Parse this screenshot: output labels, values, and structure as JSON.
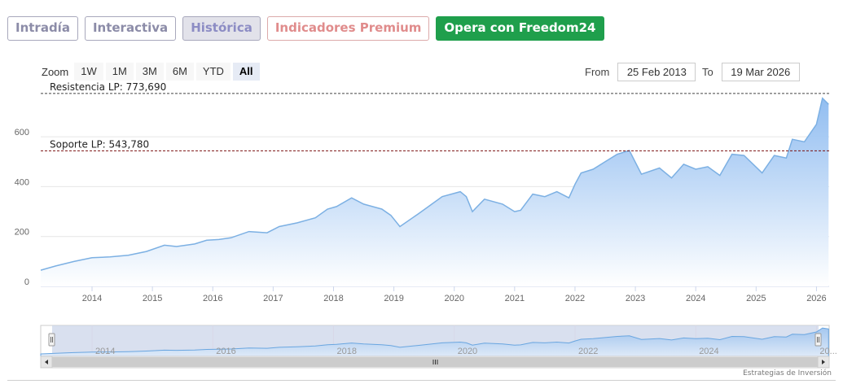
{
  "tabs": [
    {
      "label": "Intradía",
      "state": "default"
    },
    {
      "label": "Interactiva",
      "state": "default"
    },
    {
      "label": "Histórica",
      "state": "active"
    },
    {
      "label": "Indicadores Premium",
      "state": "premium"
    },
    {
      "label": "Opera con Freedom24",
      "state": "cta"
    }
  ],
  "range_selector": {
    "zoom_label": "Zoom",
    "buttons": [
      "1W",
      "1M",
      "3M",
      "6M",
      "YTD",
      "All"
    ],
    "selected": "All",
    "from_label": "From",
    "from_value": "25 Feb 2013",
    "to_label": "To",
    "to_value": "19 Mar 2026"
  },
  "navigator": {
    "labels": [
      "2014",
      "2016",
      "2018",
      "2020",
      "2022",
      "2024",
      "20..."
    ]
  },
  "credit": "Estrategias de Inversión",
  "colors": {
    "line": "#7cb0e3",
    "area_top": "#8cbaf0",
    "area_bottom": "#ffffff",
    "cta": "#1f9f4c",
    "resistance": "#444444",
    "support": "#7a1010"
  },
  "chart_data": {
    "type": "area",
    "x_unit": "year",
    "xlim": [
      2013.15,
      2026.21
    ],
    "ylim": [
      0,
      780
    ],
    "yticks": [
      0,
      200,
      400,
      600
    ],
    "xticks": [
      "2014",
      "2015",
      "2016",
      "2017",
      "2018",
      "2019",
      "2020",
      "2021",
      "2022",
      "2023",
      "2024",
      "2025",
      "2026"
    ],
    "grid": true,
    "series": [
      {
        "x": [
          2013.15,
          2013.4,
          2013.7,
          2014.0,
          2014.3,
          2014.6,
          2014.9,
          2015.2,
          2015.4,
          2015.7,
          2015.9,
          2016.1,
          2016.3,
          2016.6,
          2016.9,
          2017.1,
          2017.4,
          2017.7,
          2017.9,
          2018.05,
          2018.3,
          2018.5,
          2018.8,
          2018.95,
          2019.1,
          2019.4,
          2019.6,
          2019.8,
          2020.1,
          2020.2,
          2020.3,
          2020.5,
          2020.8,
          2021.0,
          2021.1,
          2021.3,
          2021.5,
          2021.7,
          2021.9,
          2022.0,
          2022.1,
          2022.3,
          2022.5,
          2022.7,
          2022.9,
          2023.1,
          2023.4,
          2023.6,
          2023.8,
          2024.0,
          2024.2,
          2024.4,
          2024.6,
          2024.8,
          2025.1,
          2025.3,
          2025.5,
          2025.6,
          2025.8,
          2026.0,
          2026.1,
          2026.2
        ],
        "y": [
          65,
          82,
          100,
          115,
          118,
          125,
          140,
          165,
          160,
          170,
          185,
          188,
          195,
          220,
          215,
          240,
          255,
          275,
          310,
          320,
          355,
          330,
          310,
          285,
          240,
          290,
          325,
          360,
          380,
          360,
          300,
          350,
          330,
          300,
          305,
          370,
          360,
          380,
          355,
          410,
          455,
          470,
          500,
          530,
          545,
          450,
          475,
          435,
          490,
          470,
          480,
          445,
          530,
          525,
          455,
          525,
          515,
          590,
          580,
          650,
          755,
          730
        ]
      }
    ],
    "plot_lines": [
      {
        "label": "Resistencia LP: 773,690",
        "value": 773.69,
        "style": "dashed"
      },
      {
        "label": "Soporte LP: 543,780",
        "value": 543.78,
        "style": "dashed"
      }
    ]
  }
}
